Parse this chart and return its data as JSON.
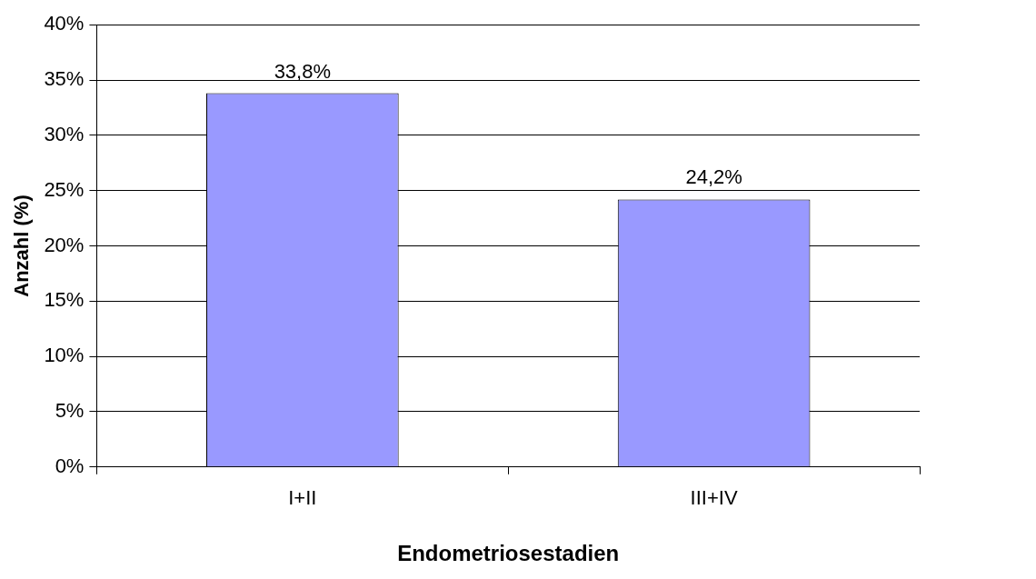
{
  "chart_data": {
    "type": "bar",
    "xlabel": "Endometriosestadien",
    "ylabel": "Anzahl (%)",
    "categories": [
      "I+II",
      "III+IV"
    ],
    "values": [
      33.8,
      24.2
    ],
    "value_labels": [
      "33,8%",
      "24,2%"
    ],
    "color": "#9999ff",
    "ylim": [
      0,
      40
    ],
    "yticks": [
      {
        "value": 0,
        "label": "0%"
      },
      {
        "value": 5,
        "label": "5%"
      },
      {
        "value": 10,
        "label": "10%"
      },
      {
        "value": 15,
        "label": "15%"
      },
      {
        "value": 20,
        "label": "20%"
      },
      {
        "value": 25,
        "label": "25%"
      },
      {
        "value": 30,
        "label": "30%"
      },
      {
        "value": 35,
        "label": "35%"
      },
      {
        "value": 40,
        "label": "40%"
      }
    ],
    "grid": "y"
  }
}
